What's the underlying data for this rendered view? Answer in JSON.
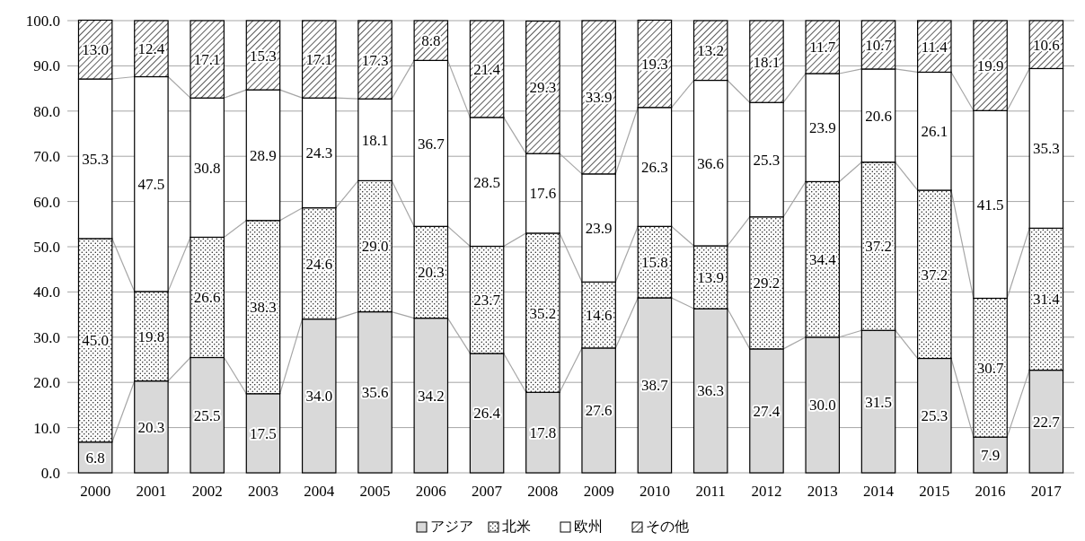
{
  "chart_data": {
    "type": "bar",
    "stacked": true,
    "categories": [
      "2000",
      "2001",
      "2002",
      "2003",
      "2004",
      "2005",
      "2006",
      "2007",
      "2008",
      "2009",
      "2010",
      "2011",
      "2012",
      "2013",
      "2014",
      "2015",
      "2016",
      "2017"
    ],
    "series": [
      {
        "name": "アジア",
        "color": "#d9d9d9",
        "values": [
          6.8,
          20.3,
          25.5,
          17.5,
          34.0,
          35.6,
          34.2,
          26.4,
          17.8,
          27.6,
          38.7,
          36.3,
          27.4,
          30.0,
          31.5,
          25.3,
          7.9,
          22.7
        ],
        "value_labels": [
          "6.8",
          "20.3",
          "25.5",
          "17.5",
          "34.0",
          "35.6",
          "34.2",
          "26.4",
          "17.8",
          "27.6",
          "38.7",
          "36.3",
          "27.4",
          "30.0",
          "31.5",
          "25.3",
          "7.9",
          "22.7"
        ]
      },
      {
        "name": "北米",
        "color": "#000000",
        "values": [
          45.0,
          19.8,
          26.6,
          38.3,
          24.6,
          29.0,
          20.3,
          23.7,
          35.2,
          14.6,
          15.8,
          13.9,
          29.2,
          34.4,
          37.2,
          37.2,
          30.7,
          31.4
        ],
        "value_labels": [
          "45.0",
          "19.8",
          "26.6",
          "38.3",
          "24.6",
          "29.0",
          "20.3",
          "23.7",
          "35.2",
          "14.6",
          "15.8",
          "13.9",
          "29.2",
          "34.4",
          "37.2",
          "37.2",
          "30.7",
          "31.4"
        ]
      },
      {
        "name": "欧州",
        "color": "#ffffff",
        "values": [
          35.3,
          47.5,
          30.8,
          28.9,
          24.3,
          18.1,
          36.7,
          28.5,
          17.6,
          23.9,
          26.3,
          36.6,
          25.3,
          23.9,
          20.6,
          26.1,
          41.5,
          35.3
        ],
        "value_labels": [
          "35.3",
          "47.5",
          "30.8",
          "28.9",
          "24.3",
          "18.1",
          "36.7",
          "28.5",
          "17.6",
          "23.9",
          "26.3",
          "36.6",
          "25.3",
          "23.9",
          "20.6",
          "26.1",
          "41.5",
          "35.3"
        ]
      },
      {
        "name": "その他",
        "color": "#000000",
        "values": [
          13.0,
          12.4,
          17.1,
          15.3,
          17.1,
          17.3,
          8.8,
          21.4,
          29.3,
          33.9,
          19.3,
          13.2,
          18.1,
          11.7,
          10.7,
          11.4,
          19.9,
          10.6
        ],
        "value_labels": [
          "13.0",
          "12.4",
          "17.1",
          "15.3",
          "17.1",
          "17.3",
          "8.8",
          "21.4",
          "29.3",
          "33.9",
          "19.3",
          "13.2",
          "18.1",
          "11.7",
          "10.7",
          "11.4",
          "19.9",
          "10.6"
        ]
      }
    ],
    "ylim": [
      0,
      100
    ],
    "yticks": [
      {
        "value": 0,
        "label": "0.0"
      },
      {
        "value": 10,
        "label": "10.0"
      },
      {
        "value": 20,
        "label": "20.0"
      },
      {
        "value": 30,
        "label": "30.0"
      },
      {
        "value": 40,
        "label": "40.0"
      },
      {
        "value": 50,
        "label": "50.0"
      },
      {
        "value": 60,
        "label": "60.0"
      },
      {
        "value": 70,
        "label": "70.0"
      },
      {
        "value": 80,
        "label": "80.0"
      },
      {
        "value": 90,
        "label": "90.0"
      },
      {
        "value": 100,
        "label": "100.0"
      }
    ],
    "grid": "y",
    "legend": "bottom"
  }
}
